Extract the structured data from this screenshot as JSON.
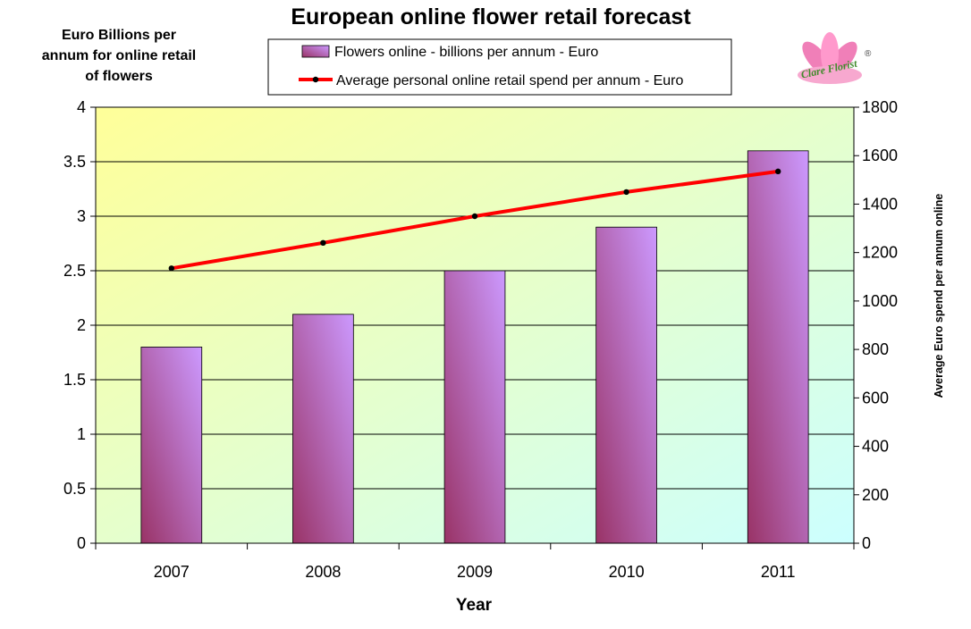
{
  "chart_data": {
    "type": "bar",
    "title": "European online flower retail forecast",
    "categories": [
      "2007",
      "2008",
      "2009",
      "2010",
      "2011"
    ],
    "xlabel": "Year",
    "ylabel_lines": [
      "Euro Billions per",
      "annum for online retail",
      "of flowers"
    ],
    "ylabel2": "Average Euro spend per annum online",
    "ylim": [
      0,
      4
    ],
    "yticks": [
      "0",
      "0.5",
      "1",
      "1.5",
      "2",
      "2.5",
      "3",
      "3.5",
      "4"
    ],
    "y2lim": [
      0,
      1800
    ],
    "y2ticks": [
      "0",
      "200",
      "400",
      "600",
      "800",
      "1000",
      "1200",
      "1400",
      "1600",
      "1800"
    ],
    "grid": true,
    "legend_position": "top",
    "series": [
      {
        "name": "Flowers online - billions per annum - Euro",
        "type": "bar",
        "axis": "left",
        "values": [
          1.8,
          2.1,
          2.5,
          2.9,
          3.6
        ]
      },
      {
        "name": "Average personal online retail spend per annum - Euro",
        "type": "line",
        "axis": "right",
        "values": [
          1135,
          1240,
          1350,
          1450,
          1535
        ]
      }
    ],
    "colors": {
      "bar_light": "#cc99ff",
      "bar_dark": "#993366",
      "line": "#ff0000",
      "marker": "#000000",
      "plot_bg_tl": "#ffff99",
      "plot_bg_br": "#ccffff"
    }
  },
  "logo": {
    "text": "Clare Florist",
    "mark": "®"
  }
}
